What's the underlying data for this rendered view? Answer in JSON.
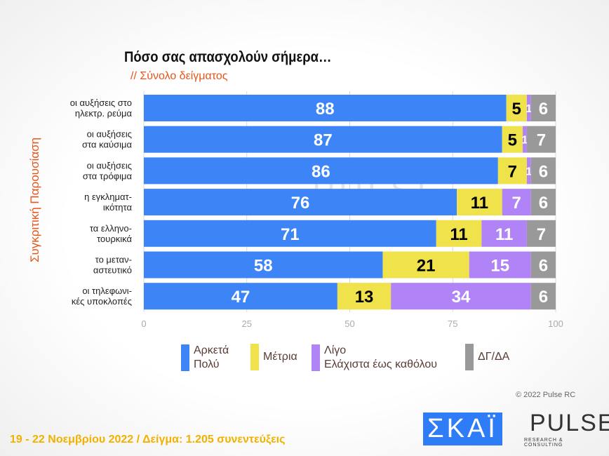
{
  "chart_data": {
    "type": "bar",
    "orientation": "horizontal",
    "stacked": true,
    "title": "Πόσο σας απασχολούν σήμερα…",
    "subtitle": "// Σύνολο δείγματος",
    "ylabel": "Συγκριτική Παρουσίαση",
    "xlim": [
      0,
      100
    ],
    "xticks": [
      "0",
      "25",
      "50",
      "75",
      "100"
    ],
    "grid": true,
    "legend_position": "bottom",
    "categories": [
      [
        "οι αυξήσεις στο",
        "ηλεκτρ. ρεύμα"
      ],
      [
        "οι αυξήσεις",
        "στα καύσιμα"
      ],
      [
        "οι αυξήσεις",
        "στα τρόφιμα"
      ],
      [
        "η εγκληματ-",
        "ικότητα"
      ],
      [
        "τα ελληνο-",
        "τουρκικά"
      ],
      [
        "το μεταν-",
        "αστευτικό"
      ],
      [
        "οι τηλεφωνι-",
        "κές υποκλοπές"
      ]
    ],
    "series": [
      {
        "name": [
          "Αρκετά",
          "Πολύ"
        ],
        "color": "#3d85f7",
        "label_color": "#ffffff",
        "values": [
          88,
          87,
          86,
          76,
          71,
          58,
          47
        ]
      },
      {
        "name": [
          "Μέτρια"
        ],
        "color": "#efe24a",
        "label_color": "#000000",
        "values": [
          5,
          5,
          7,
          11,
          11,
          21,
          13
        ]
      },
      {
        "name": [
          "Λίγο",
          "Ελάχιστα έως καθόλου"
        ],
        "color": "#b084f7",
        "label_color": "#ffffff",
        "values": [
          1,
          1,
          1,
          7,
          11,
          15,
          34
        ]
      },
      {
        "name": [
          "ΔΓ/ΔΑ"
        ],
        "color": "#999999",
        "label_color": "#ffffff",
        "values": [
          6,
          7,
          6,
          6,
          7,
          6,
          6
        ]
      }
    ]
  },
  "footer": {
    "survey": "19 - 22  Νοεμβρίου  2022  /  Δείγμα:  1.205 συνεντεύξεις",
    "copyright": "© 2022 Pulse RC"
  },
  "logos": {
    "skai": "ΣΚΑΪ",
    "pulse": "PULSE",
    "pulse_sub": "RESEARCH & CONSULTING"
  }
}
